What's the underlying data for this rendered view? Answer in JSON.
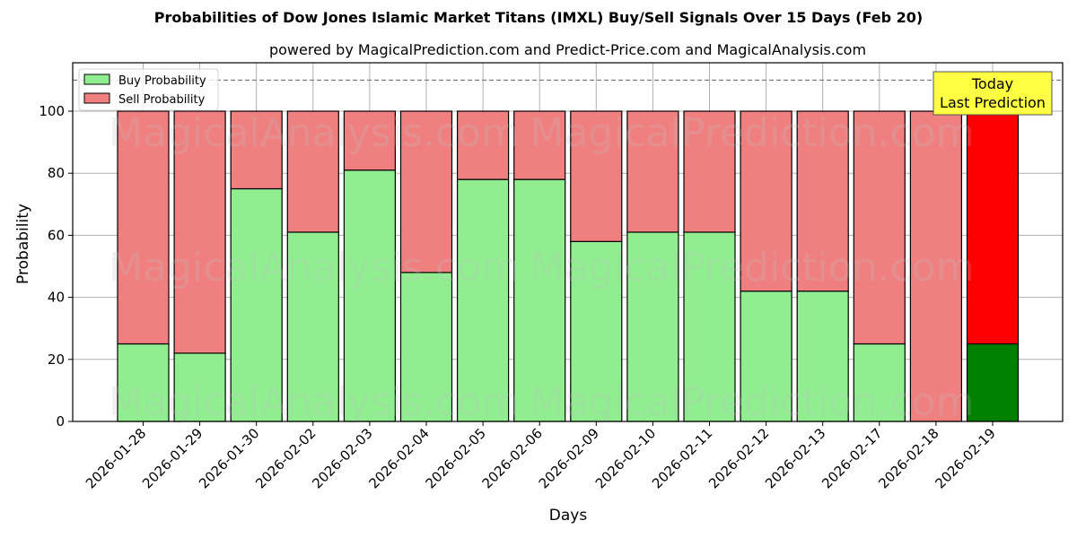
{
  "chart_data": {
    "type": "bar",
    "stacked": true,
    "title": "Probabilities of Dow Jones Islamic Market Titans (IMXL) Buy/Sell Signals Over 15 Days (Feb 20)",
    "subtitle": "powered by MagicalPrediction.com and Predict-Price.com and MagicalAnalysis.com",
    "xlabel": "Days",
    "ylabel": "Probability",
    "ylim": [
      0,
      115
    ],
    "yticks": [
      0,
      20,
      40,
      60,
      80,
      100
    ],
    "grid": true,
    "reference_line": 110,
    "legend_position": "upper left",
    "categories": [
      "2026-01-28",
      "2026-01-29",
      "2026-01-30",
      "2026-02-02",
      "2026-02-03",
      "2026-02-04",
      "2026-02-05",
      "2026-02-06",
      "2026-02-09",
      "2026-02-10",
      "2026-02-11",
      "2026-02-12",
      "2026-02-13",
      "2026-02-17",
      "2026-02-18",
      "2026-02-19"
    ],
    "series": [
      {
        "name": "Buy Probability",
        "color": "#90ee90",
        "values": [
          25,
          22,
          75,
          61,
          81,
          48,
          78,
          78,
          58,
          61,
          61,
          42,
          42,
          25,
          0,
          25
        ]
      },
      {
        "name": "Sell Probability",
        "color": "#f08080",
        "values": [
          75,
          78,
          25,
          39,
          19,
          52,
          22,
          22,
          42,
          39,
          39,
          58,
          58,
          75,
          100,
          75
        ]
      }
    ],
    "highlight": {
      "index": 15,
      "buy_color": "#008000",
      "sell_color": "#ff0000",
      "annotation": [
        "Today",
        "Last Prediction"
      ],
      "annotation_bg": "#ffff44"
    },
    "watermarks": [
      "MagicalAnalysis.com",
      "MagicalPrediction.com"
    ]
  }
}
